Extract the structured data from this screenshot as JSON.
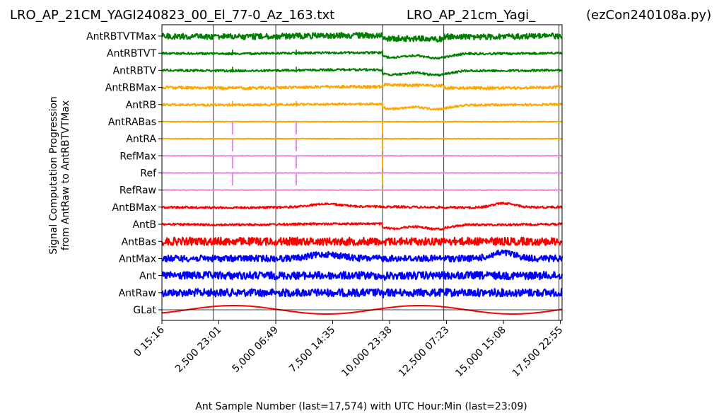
{
  "chart_data": {
    "type": "line",
    "title_left": "LRO_AP_21CM_YAGI240823_00_El_77-0_Az_163.txt",
    "title_center": "LRO_AP_21cm_Yagi_",
    "title_right": "(ezCon240108a.py)",
    "xlabel": "Ant Sample Number (last=17,574) with UTC Hour:Min (last=23:09)",
    "ylabel_line1": "Signal Computation Progression",
    "ylabel_line2": "from AntRaw to AntRBTVTMax",
    "xlim": [
      0,
      17574
    ],
    "x_ticks": [
      {
        "x": 0,
        "label": "0  15:16"
      },
      {
        "x": 2500,
        "label": "2,500  23:01"
      },
      {
        "x": 5000,
        "label": "5,000  06:49"
      },
      {
        "x": 7500,
        "label": "7,500  14:35"
      },
      {
        "x": 10000,
        "label": "10,000  23:38"
      },
      {
        "x": 12500,
        "label": "12,500  07:23"
      },
      {
        "x": 15000,
        "label": "15,000  15:08"
      },
      {
        "x": 17500,
        "label": "17,500  22:55"
      }
    ],
    "day_boundaries": [
      2260,
      5000,
      9690,
      12380,
      17440
    ],
    "series": [
      {
        "name": "GLat",
        "color": "#ff0000",
        "style": "sine"
      },
      {
        "name": "AntRaw",
        "color": "#0000ff",
        "style": "noisy-wide"
      },
      {
        "name": "Ant",
        "color": "#0000ff",
        "style": "noisy-wide"
      },
      {
        "name": "AntMax",
        "color": "#0000ff",
        "style": "noisy-hump"
      },
      {
        "name": "AntBas",
        "color": "#ff0000",
        "style": "noisy-wide"
      },
      {
        "name": "AntB",
        "color": "#ff0000",
        "style": "smooth-drop"
      },
      {
        "name": "AntBMax",
        "color": "#ff0000",
        "style": "smooth-hump"
      },
      {
        "name": "RefRaw",
        "color": "#ee82ee",
        "style": "flat"
      },
      {
        "name": "Ref",
        "color": "#ee82ee",
        "style": "flat"
      },
      {
        "name": "RefMax",
        "color": "#ee82ee",
        "style": "flat"
      },
      {
        "name": "AntRA",
        "color": "#ffa500",
        "style": "flat-spikes"
      },
      {
        "name": "AntRABas",
        "color": "#ffa500",
        "style": "flat-spikes"
      },
      {
        "name": "AntRB",
        "color": "#ffa500",
        "style": "smooth-drop"
      },
      {
        "name": "AntRBMax",
        "color": "#ffa500",
        "style": "smooth"
      },
      {
        "name": "AntRBTV",
        "color": "#008000",
        "style": "smooth-drop"
      },
      {
        "name": "AntRBTVT",
        "color": "#008000",
        "style": "smooth-drop"
      },
      {
        "name": "AntRBTVTMax",
        "color": "#008000",
        "style": "noisy-smooth"
      }
    ],
    "spike_positions": [
      3100,
      5900,
      9690
    ],
    "grid": false,
    "legend": "none"
  }
}
